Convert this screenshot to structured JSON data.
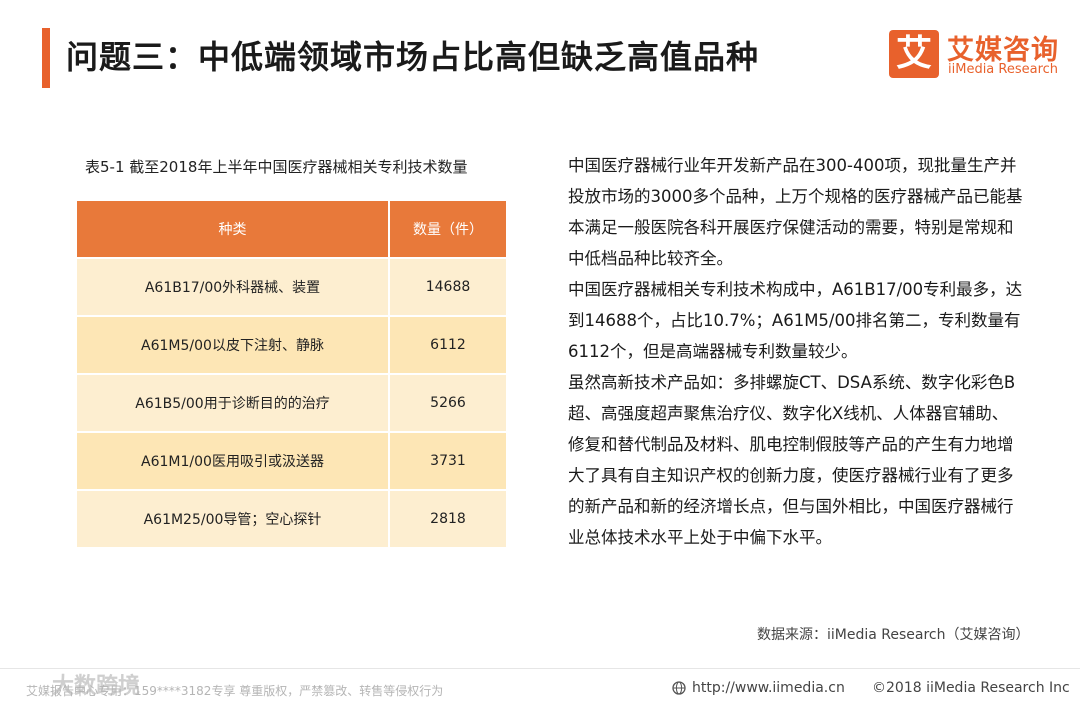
{
  "header": {
    "title": "问题三：中低端领域市场占比高但缺乏高值品种",
    "logo": {
      "icon": "艾",
      "name": "艾媒咨询",
      "sub": "iiMedia Research"
    }
  },
  "table": {
    "caption": "表5-1 截至2018年上半年中国医疗器械相关专利技术数量",
    "columns": [
      "种类",
      "数量（件）"
    ],
    "rows": [
      [
        "A61B17/00外科器械、装置",
        14688
      ],
      [
        "A61M5/00以皮下注射、静脉",
        6112
      ],
      [
        "A61B5/00用于诊断目的的治疗",
        5266
      ],
      [
        "A61M1/00医用吸引或汲送器",
        3731
      ],
      [
        "A61M25/00导管；空心探针",
        2818
      ]
    ]
  },
  "paragraphs": [
    "中国医疗器械行业年开发新产品在300-400项，现批量生产并投放市场的3000多个品种，上万个规格的医疗器械产品已能基本满足一般医院各科开展医疗保健活动的需要，特别是常规和中低档品种比较齐全。",
    "中国医疗器械相关专利技术构成中，A61B17/00专利最多，达到14688个，占比10.7%；A61M5/00排名第二，专利数量有6112个，但是高端器械专利数量较少。",
    "虽然高新技术产品如：多排螺旋CT、DSA系统、数字化彩色B超、高强度超声聚焦治疗仪、数字化X线机、人体器官辅助、修复和替代制品及材料、肌电控制假肢等产品的产生有力地增大了具有自主知识产权的创新力度，使医疗器械行业有了更多的新产品和新的经济增长点，但与国外相比，中国医疗器械行业总体技术水平上处于中偏下水平。"
  ],
  "source": "数据来源：iiMedia Research（艾媒咨询）",
  "footer": {
    "watermark": "大数跨境",
    "notice": "艾媒报告中心专用：159****3182专享 尊重版权，严禁篡改、转售等侵权行为",
    "url": "http://www.iimedia.cn",
    "copyright": "©2018  iiMedia Research  Inc"
  }
}
